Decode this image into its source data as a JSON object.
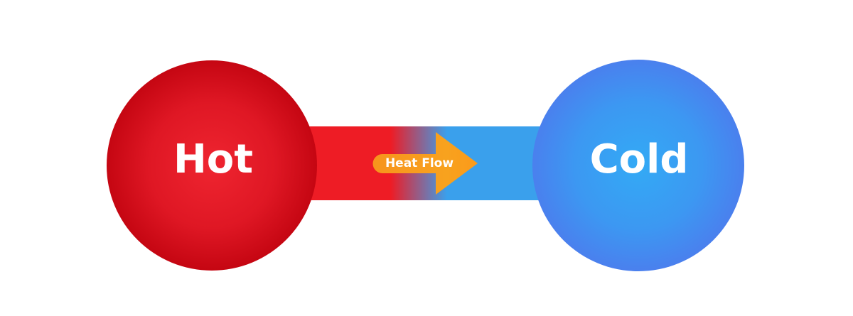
{
  "nodes": {
    "hot": {
      "label": "Hot",
      "color": "#d90f1a"
    },
    "cold": {
      "label": "Cold",
      "color": "#3b8cf0"
    }
  },
  "connector": {
    "from": "hot",
    "to": "cold",
    "start_color": "#ee1c25",
    "end_color": "#3aa0ec"
  },
  "arrow": {
    "label": "Heat Flow",
    "color": "#f7941d",
    "direction": "right"
  }
}
